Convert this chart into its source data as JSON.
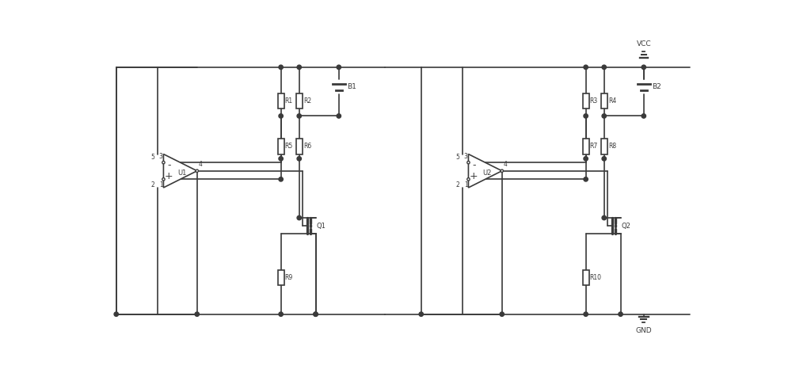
{
  "lw": 1.2,
  "lc": "#3a3a3a",
  "tc": "#3a3a3a",
  "figsize": [
    10.0,
    4.76
  ],
  "dpi": 100,
  "xlim": [
    0,
    100
  ],
  "ylim": [
    0,
    47.6
  ]
}
